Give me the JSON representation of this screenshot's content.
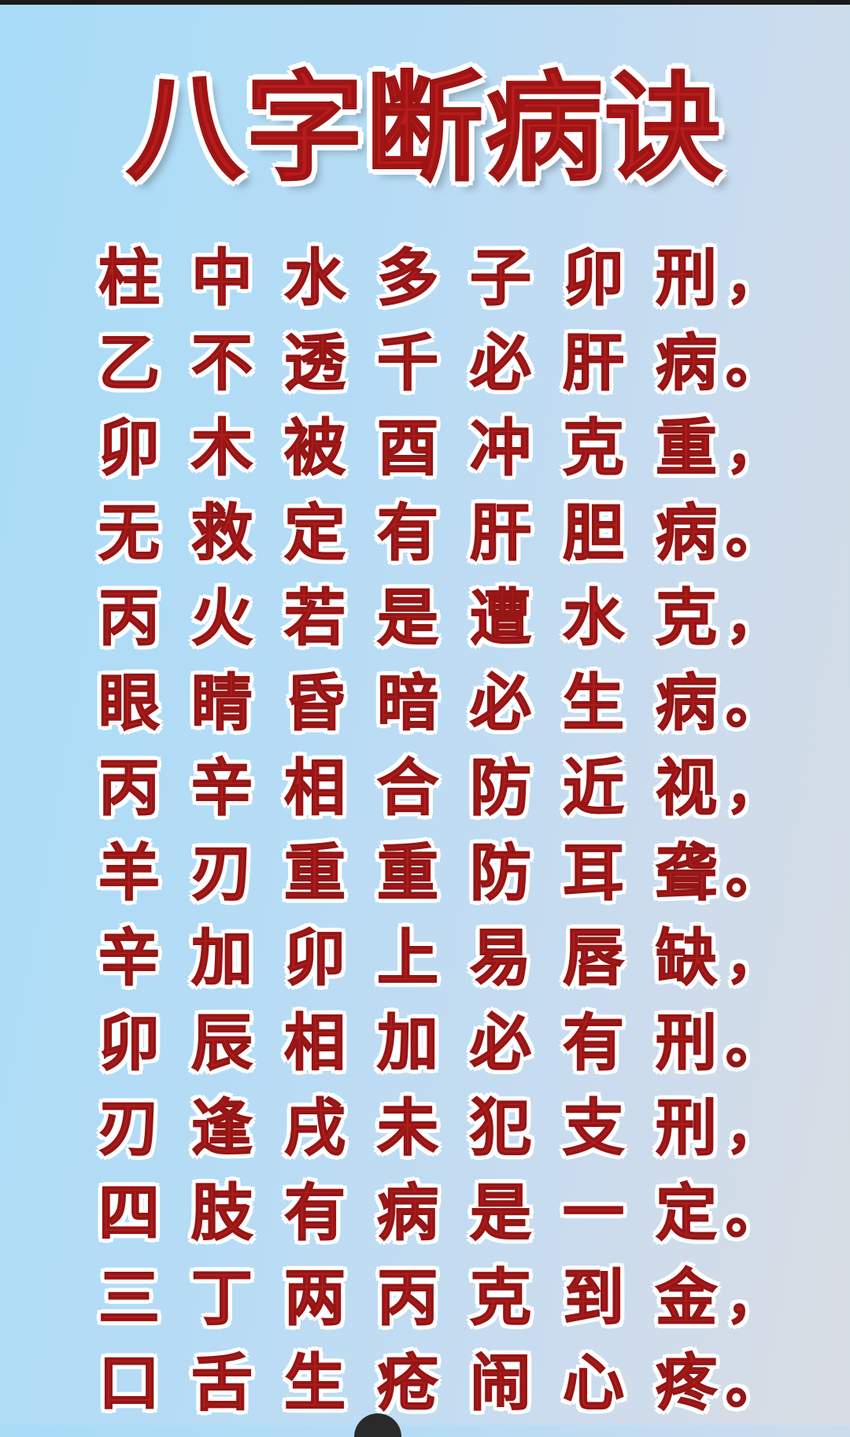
{
  "title": "八字断病诀",
  "lines": [
    [
      "柱",
      "中",
      "水",
      "多",
      "子",
      "卯",
      "刑",
      "，"
    ],
    [
      "乙",
      "不",
      "透",
      "千",
      "必",
      "肝",
      "病",
      "。"
    ],
    [
      "卯",
      "木",
      "被",
      "酉",
      "冲",
      "克",
      "重",
      "，"
    ],
    [
      "无",
      "救",
      "定",
      "有",
      "肝",
      "胆",
      "病",
      "。"
    ],
    [
      "丙",
      "火",
      "若",
      "是",
      "遭",
      "水",
      "克",
      "，"
    ],
    [
      "眼",
      "睛",
      "昏",
      "暗",
      "必",
      "生",
      "病",
      "。"
    ],
    [
      "丙",
      "辛",
      "相",
      "合",
      "防",
      "近",
      "视",
      "，"
    ],
    [
      "羊",
      "刃",
      "重",
      "重",
      "防",
      "耳",
      "聋",
      "。"
    ],
    [
      "辛",
      "加",
      "卯",
      "上",
      "易",
      "唇",
      "缺",
      "，"
    ],
    [
      "卯",
      "辰",
      "相",
      "加",
      "必",
      "有",
      "刑",
      "。"
    ],
    [
      "刃",
      "逢",
      "戌",
      "未",
      "犯",
      "支",
      "刑",
      "，"
    ],
    [
      "四",
      "肢",
      "有",
      "病",
      "是",
      "一",
      "定",
      "。"
    ],
    [
      "三",
      "丁",
      "两",
      "丙",
      "克",
      "到",
      "金",
      "，"
    ],
    [
      "口",
      "舌",
      "生",
      "疮",
      "闹",
      "心",
      "疼",
      "。"
    ]
  ],
  "colors": {
    "text": "#b01e1e",
    "outline": "#ffffff",
    "background_left": "#a8dcf7",
    "background_right": "#d9dde3"
  }
}
